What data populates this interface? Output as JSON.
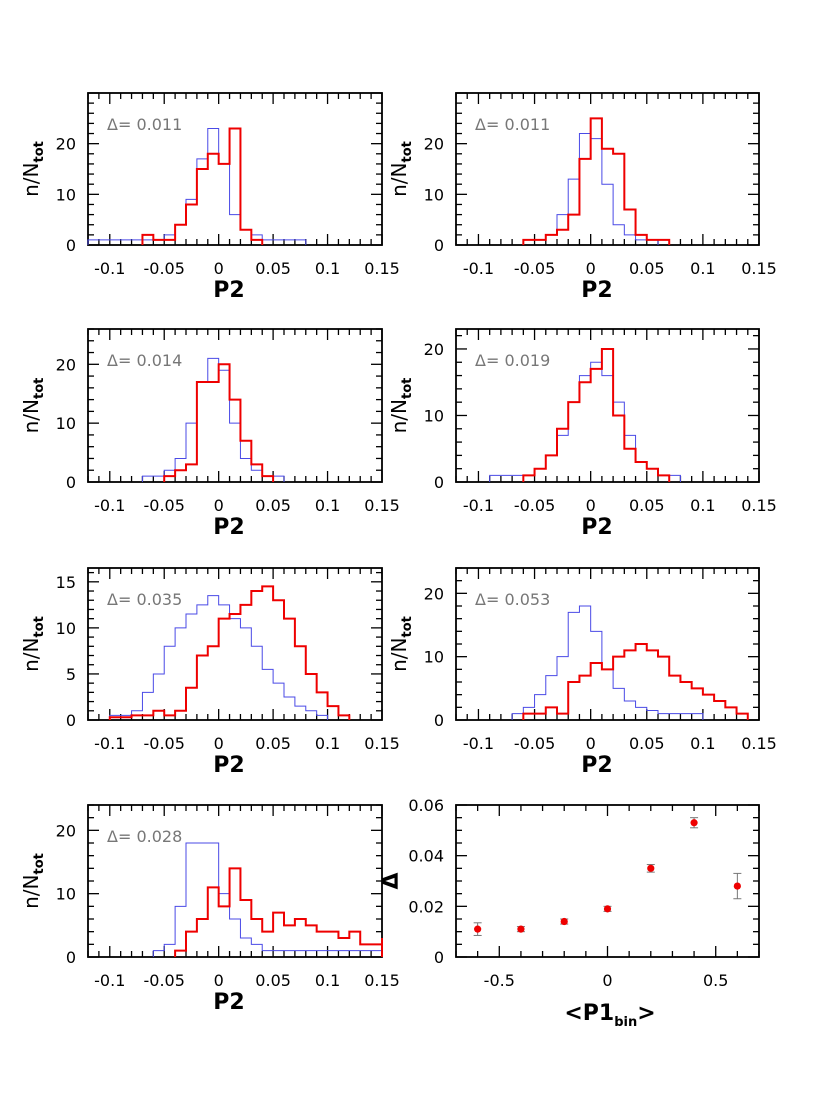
{
  "chart_data": [
    {
      "type": "histogram",
      "xlabel": "P2",
      "ylabel_main": "n/N",
      "ylabel_sub": "tot",
      "annotation": "Δ=  0.011",
      "xlim": [
        -0.12,
        0.15
      ],
      "ylim": [
        0,
        30
      ],
      "xticks": [
        -0.1,
        -0.05,
        0,
        0.05,
        0.1,
        0.15
      ],
      "xtick_labels": [
        "-0.1",
        "-0.05",
        "0",
        "0.05",
        "0.1",
        "0.15"
      ],
      "yticks": [
        0,
        10,
        20
      ],
      "ytick_labels": [
        "0",
        "10",
        "20"
      ],
      "bin_width": 0.01,
      "series": [
        {
          "color": "#4a4ae6",
          "line_width": 1,
          "bin_start": -0.12,
          "values": [
            1,
            1,
            1,
            1,
            1,
            1,
            1,
            2,
            4,
            9,
            17,
            23,
            16,
            6,
            3,
            2,
            1,
            1,
            1,
            1
          ]
        },
        {
          "color": "#ee0000",
          "line_width": 2,
          "bin_start": -0.07,
          "values": [
            2,
            1,
            1,
            4,
            8,
            15,
            18,
            16,
            23,
            3,
            1
          ]
        }
      ]
    },
    {
      "type": "histogram",
      "xlabel": "P2",
      "ylabel_main": "n/N",
      "ylabel_sub": "tot",
      "annotation": "Δ=  0.011",
      "xlim": [
        -0.12,
        0.15
      ],
      "ylim": [
        0,
        30
      ],
      "xticks": [
        -0.1,
        -0.05,
        0,
        0.05,
        0.1,
        0.15
      ],
      "xtick_labels": [
        "-0.1",
        "-0.05",
        "0",
        "0.05",
        "0.1",
        "0.15"
      ],
      "yticks": [
        0,
        10,
        20
      ],
      "ytick_labels": [
        "0",
        "10",
        "20"
      ],
      "bin_width": 0.01,
      "series": [
        {
          "color": "#4a4ae6",
          "line_width": 1,
          "bin_start": -0.06,
          "values": [
            1,
            1,
            2,
            6,
            13,
            22,
            21,
            12,
            4,
            2,
            1,
            1
          ]
        },
        {
          "color": "#ee0000",
          "line_width": 2,
          "bin_start": -0.06,
          "values": [
            1,
            1,
            2,
            3,
            6,
            17,
            25,
            19,
            18,
            7,
            2,
            1,
            1
          ]
        }
      ]
    },
    {
      "type": "histogram",
      "xlabel": "P2",
      "ylabel_main": "n/N",
      "ylabel_sub": "tot",
      "annotation": "Δ=  0.014",
      "xlim": [
        -0.12,
        0.15
      ],
      "ylim": [
        0,
        26
      ],
      "xticks": [
        -0.1,
        -0.05,
        0,
        0.05,
        0.1,
        0.15
      ],
      "xtick_labels": [
        "-0.1",
        "-0.05",
        "0",
        "0.05",
        "0.1",
        "0.15"
      ],
      "yticks": [
        0,
        10,
        20
      ],
      "ytick_labels": [
        "0",
        "10",
        "20"
      ],
      "bin_width": 0.01,
      "series": [
        {
          "color": "#4a4ae6",
          "line_width": 1,
          "bin_start": -0.07,
          "values": [
            1,
            1,
            2,
            4,
            10,
            17,
            21,
            19,
            10,
            4,
            2,
            1,
            1
          ]
        },
        {
          "color": "#ee0000",
          "line_width": 2,
          "bin_start": -0.05,
          "values": [
            1,
            2,
            3,
            17,
            17,
            20,
            14,
            7,
            3,
            1
          ]
        }
      ]
    },
    {
      "type": "histogram",
      "xlabel": "P2",
      "ylabel_main": "n/N",
      "ylabel_sub": "tot",
      "annotation": "Δ=  0.019",
      "xlim": [
        -0.12,
        0.15
      ],
      "ylim": [
        0,
        23
      ],
      "xticks": [
        -0.1,
        -0.05,
        0,
        0.05,
        0.1,
        0.15
      ],
      "xtick_labels": [
        "-0.1",
        "-0.05",
        "0",
        "0.05",
        "0.1",
        "0.15"
      ],
      "yticks": [
        0,
        10,
        20
      ],
      "ytick_labels": [
        "0",
        "10",
        "20"
      ],
      "bin_width": 0.01,
      "series": [
        {
          "color": "#4a4ae6",
          "line_width": 1,
          "bin_start": -0.09,
          "values": [
            1,
            1,
            1,
            1,
            2,
            4,
            7,
            12,
            16,
            18,
            16,
            12,
            7,
            3,
            2,
            1,
            1
          ]
        },
        {
          "color": "#ee0000",
          "line_width": 2,
          "bin_start": -0.06,
          "values": [
            1,
            2,
            4,
            8,
            12,
            15,
            17,
            20,
            10,
            5,
            3,
            2,
            1
          ]
        }
      ]
    },
    {
      "type": "histogram",
      "xlabel": "P2",
      "ylabel_main": "n/N",
      "ylabel_sub": "tot",
      "annotation": "Δ=  0.035",
      "xlim": [
        -0.12,
        0.15
      ],
      "ylim": [
        0,
        16.5
      ],
      "xticks": [
        -0.1,
        -0.05,
        0,
        0.05,
        0.1,
        0.15
      ],
      "xtick_labels": [
        "-0.1",
        "-0.05",
        "0",
        "0.05",
        "0.1",
        "0.15"
      ],
      "yticks": [
        0,
        5,
        10,
        15
      ],
      "ytick_labels": [
        "0",
        "5",
        "10",
        "15"
      ],
      "bin_width": 0.01,
      "series": [
        {
          "color": "#4a4ae6",
          "line_width": 1,
          "bin_start": -0.1,
          "values": [
            0.5,
            0.5,
            1,
            3,
            5,
            8,
            10,
            11.5,
            12.5,
            13.5,
            12.5,
            11,
            10,
            8,
            5.5,
            4,
            2.5,
            1.5,
            1,
            0.5
          ]
        },
        {
          "color": "#ee0000",
          "line_width": 2,
          "bin_start": -0.1,
          "values": [
            0.3,
            0.3,
            0.5,
            0.5,
            1,
            0.5,
            1,
            3.5,
            7,
            8,
            11,
            11.5,
            12.5,
            14,
            14.5,
            13,
            11,
            8,
            5,
            3,
            1.5,
            0.5
          ]
        }
      ]
    },
    {
      "type": "histogram",
      "xlabel": "P2",
      "ylabel_main": "n/N",
      "ylabel_sub": "tot",
      "annotation": "Δ=  0.053",
      "xlim": [
        -0.12,
        0.15
      ],
      "ylim": [
        0,
        24
      ],
      "xticks": [
        -0.1,
        -0.05,
        0,
        0.05,
        0.1,
        0.15
      ],
      "xtick_labels": [
        "-0.1",
        "-0.05",
        "0",
        "0.05",
        "0.1",
        "0.15"
      ],
      "yticks": [
        0,
        10,
        20
      ],
      "ytick_labels": [
        "0",
        "10",
        "20"
      ],
      "bin_width": 0.01,
      "series": [
        {
          "color": "#4a4ae6",
          "line_width": 1,
          "bin_start": -0.07,
          "values": [
            1,
            2,
            4,
            7,
            10,
            17,
            18,
            14,
            8,
            5,
            3,
            2,
            1.5,
            1,
            1,
            1,
            1
          ]
        },
        {
          "color": "#ee0000",
          "line_width": 2,
          "bin_start": -0.06,
          "values": [
            1,
            1,
            2,
            1,
            6,
            7,
            9,
            8,
            10,
            11,
            12,
            11,
            10,
            7,
            6,
            5,
            4,
            3,
            2,
            1
          ]
        }
      ]
    },
    {
      "type": "histogram",
      "xlabel": "P2",
      "ylabel_main": "n/N",
      "ylabel_sub": "tot",
      "annotation": "Δ=  0.028",
      "xlim": [
        -0.12,
        0.15
      ],
      "ylim": [
        0,
        24
      ],
      "xticks": [
        -0.1,
        -0.05,
        0,
        0.05,
        0.1,
        0.15
      ],
      "xtick_labels": [
        "-0.1",
        "-0.05",
        "0",
        "0.05",
        "0.1",
        "0.15"
      ],
      "yticks": [
        0,
        10,
        20
      ],
      "ytick_labels": [
        "0",
        "10",
        "20"
      ],
      "bin_width": 0.01,
      "series": [
        {
          "color": "#4a4ae6",
          "line_width": 1,
          "bin_start": -0.06,
          "values": [
            1,
            2,
            8,
            18,
            18,
            18,
            10,
            6,
            3,
            2,
            1,
            1,
            1,
            1,
            1,
            1,
            1,
            1,
            1,
            1,
            1
          ]
        },
        {
          "color": "#ee0000",
          "line_width": 2,
          "bin_start": -0.04,
          "values": [
            1,
            4,
            6,
            11,
            8,
            14,
            9,
            6,
            4,
            7,
            5,
            6,
            5,
            4,
            4,
            3,
            4,
            2,
            2,
            1,
            3,
            1
          ]
        }
      ]
    },
    {
      "type": "scatter",
      "xlabel_main": "<P1",
      "xlabel_sub": "bin",
      "xlabel_end": ">",
      "ylabel": "Δ",
      "xlim": [
        -0.7,
        0.7
      ],
      "ylim": [
        0,
        0.06
      ],
      "xticks": [
        -0.5,
        0,
        0.5
      ],
      "xtick_labels": [
        "-0.5",
        "0",
        "0.5"
      ],
      "yticks": [
        0,
        0.02,
        0.04,
        0.06
      ],
      "ytick_labels": [
        "0",
        "0.02",
        "0.04",
        "0.06"
      ],
      "x": [
        -0.6,
        -0.4,
        -0.2,
        0.0,
        0.2,
        0.4,
        0.6
      ],
      "y": [
        0.011,
        0.011,
        0.014,
        0.019,
        0.035,
        0.053,
        0.028
      ],
      "yerr": [
        0.0025,
        0.001,
        0.001,
        0.001,
        0.0015,
        0.002,
        0.005
      ],
      "marker_color": "#ee0000",
      "errorbar_color": "#777777"
    }
  ]
}
